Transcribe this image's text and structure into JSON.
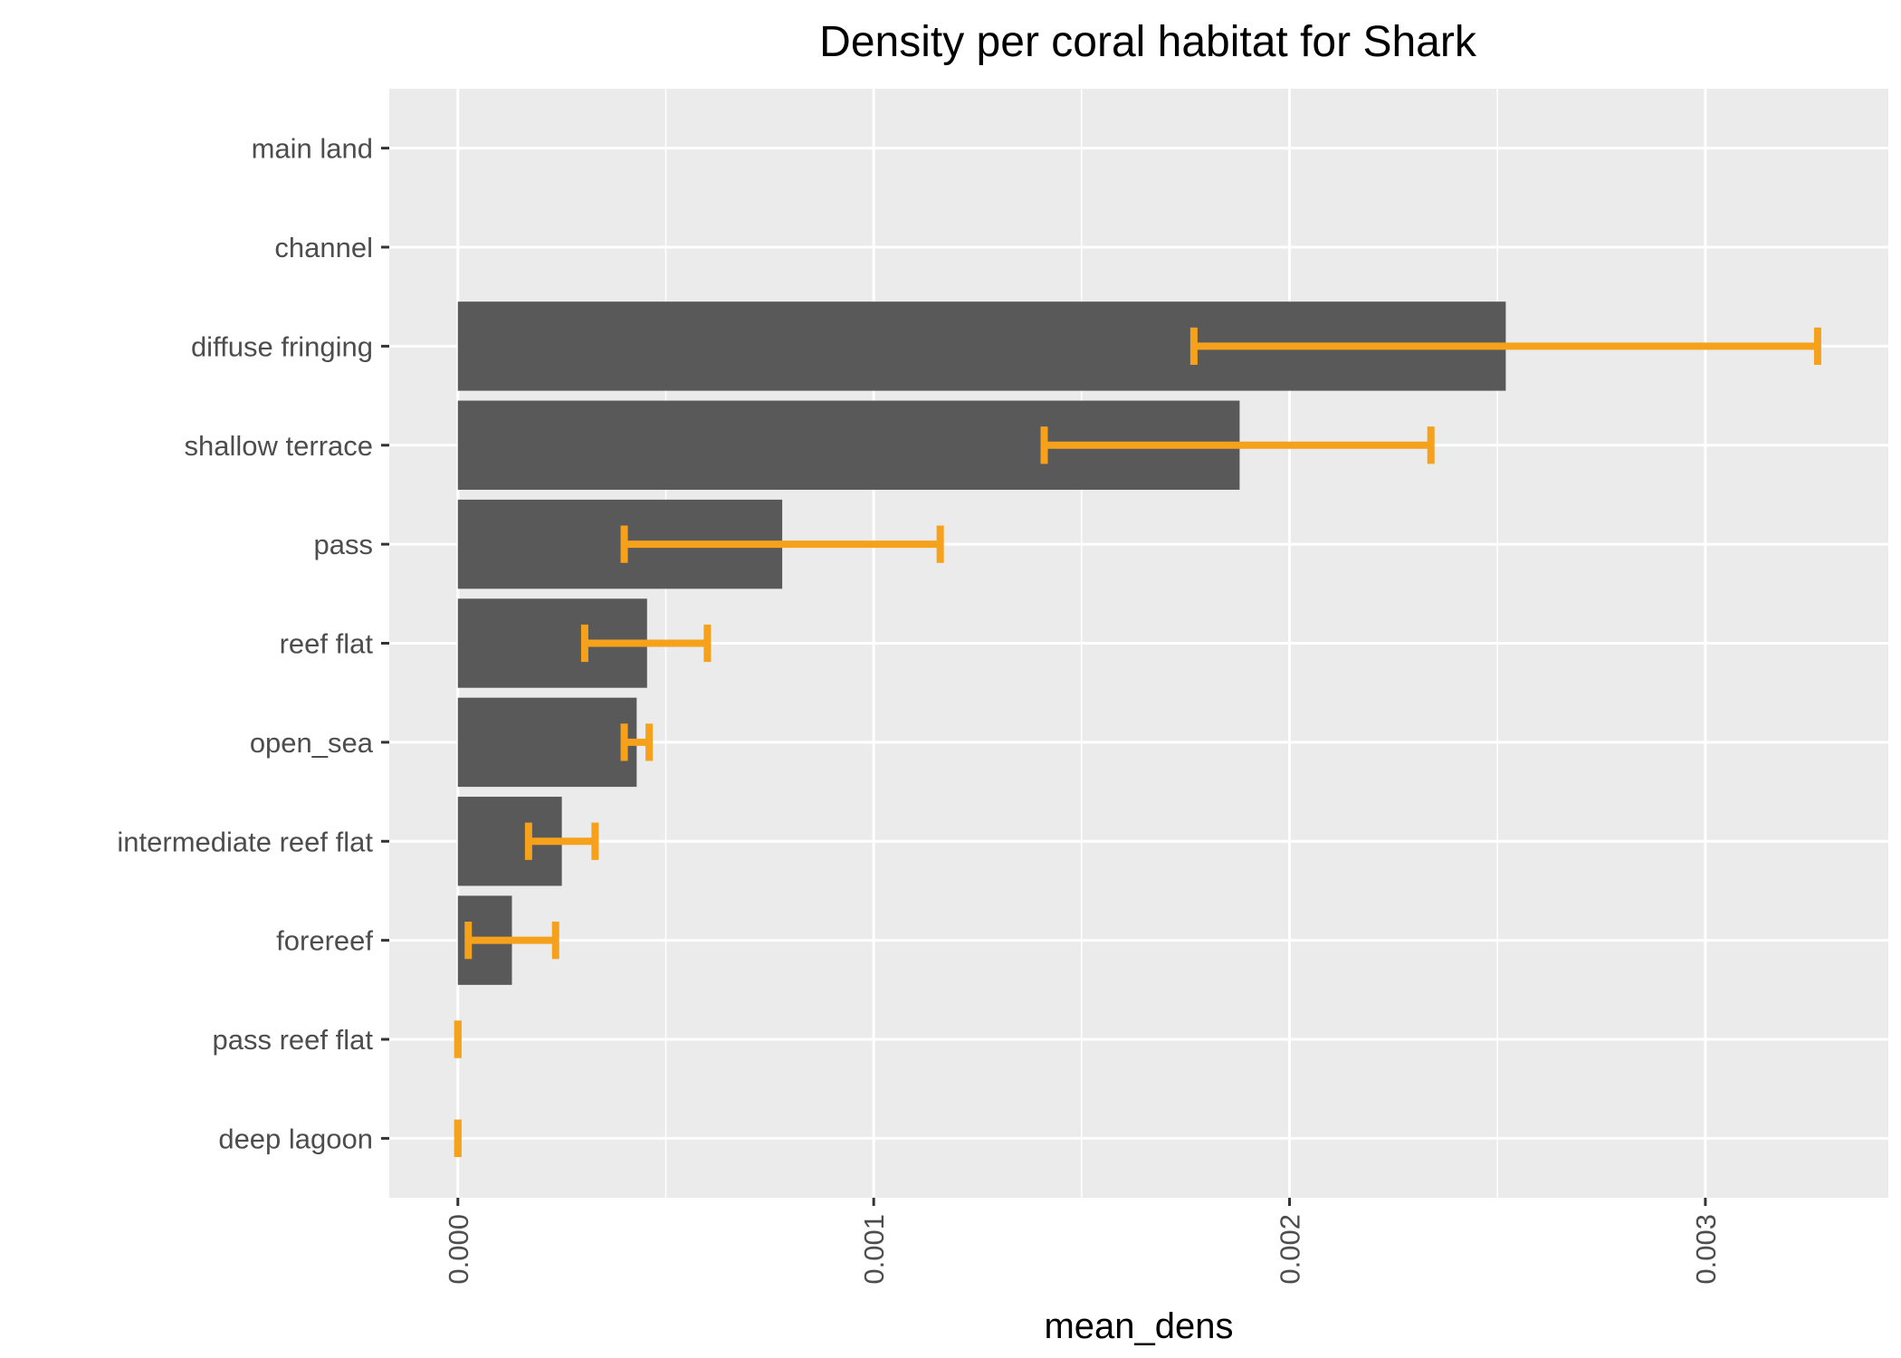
{
  "chart_data": {
    "type": "bar",
    "orientation": "horizontal",
    "title": "Density per coral habitat for Shark",
    "xlabel": "mean_dens",
    "ylabel": "",
    "xlim": [
      -0.000165,
      0.00344
    ],
    "x_ticks": [
      0.0,
      0.001,
      0.002,
      0.003
    ],
    "x_tick_labels": [
      "0.000",
      "0.001",
      "0.002",
      "0.003"
    ],
    "grid": true,
    "colors": {
      "panel": "#ebebeb",
      "grid": "#ffffff",
      "bar": "#595959",
      "error_bar": "#f5a11c",
      "tick_text": "#4d4d4d"
    },
    "categories": [
      "main land",
      "channel",
      "diffuse fringing",
      "shallow terrace",
      "pass",
      "reef flat",
      "open_sea",
      "intermediate reef flat",
      "forereef",
      "pass reef flat",
      "deep lagoon"
    ],
    "values": [
      null,
      null,
      0.00252,
      0.00188,
      0.00078,
      0.000455,
      0.00043,
      0.00025,
      0.00013,
      0.0,
      0.0
    ],
    "error_low": [
      null,
      null,
      0.00177,
      0.00141,
      0.0004,
      0.000305,
      0.0004,
      0.00017,
      2.5e-05,
      0.0,
      0.0
    ],
    "error_high": [
      null,
      null,
      0.00327,
      0.00234,
      0.00116,
      0.0006,
      0.00046,
      0.00033,
      0.000235,
      0.0,
      0.0
    ]
  }
}
